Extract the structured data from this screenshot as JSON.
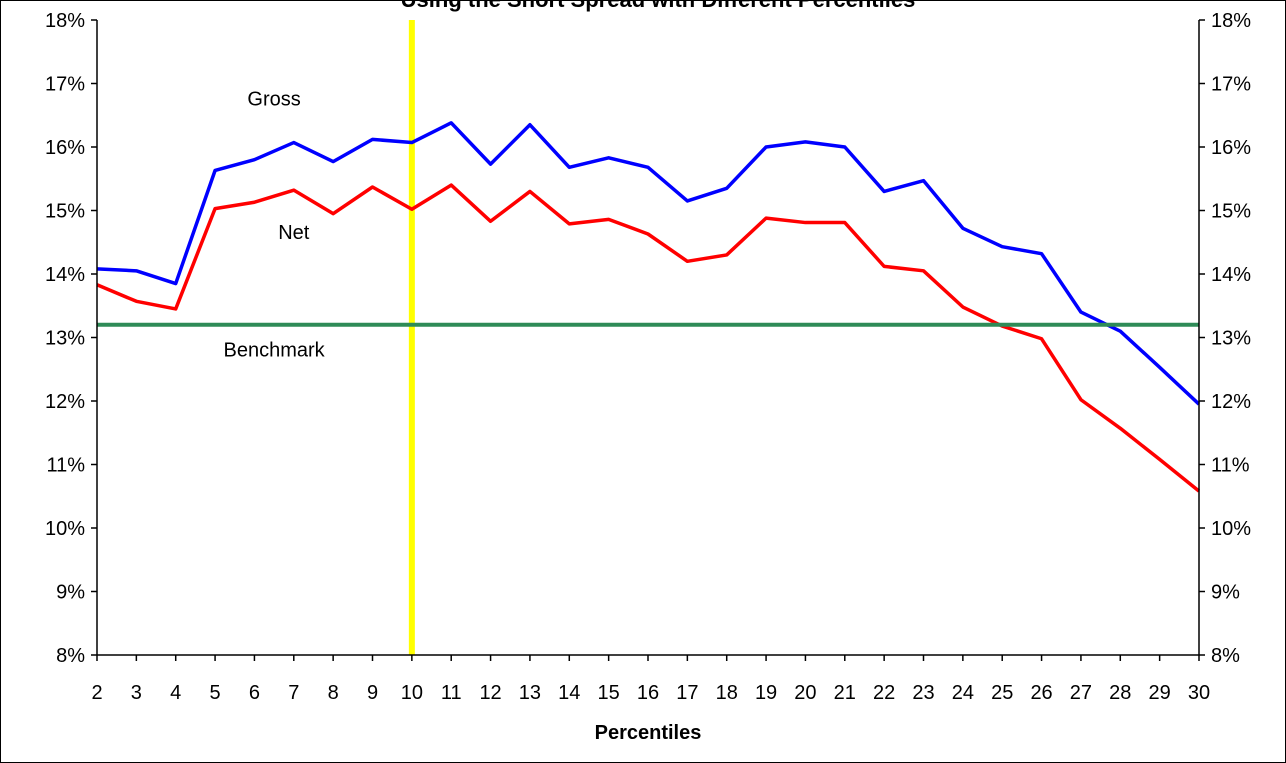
{
  "chart_data": {
    "type": "line",
    "title": "Using the Short Spread with Different Percentiles",
    "xlabel": "Percentiles",
    "ylabel": "",
    "x": [
      2,
      3,
      4,
      5,
      6,
      7,
      8,
      9,
      10,
      11,
      12,
      13,
      14,
      15,
      16,
      17,
      18,
      19,
      20,
      21,
      22,
      23,
      24,
      25,
      26,
      27,
      28,
      29,
      30
    ],
    "ylim": [
      8,
      18
    ],
    "y_ticks": [
      8,
      9,
      10,
      11,
      12,
      13,
      14,
      15,
      16,
      17,
      18
    ],
    "y_tick_suffix": "%",
    "grid": false,
    "legend": "none",
    "series": [
      {
        "name": "Gross",
        "color": "#0000ff",
        "values": [
          14.08,
          14.05,
          13.85,
          15.63,
          15.8,
          16.07,
          15.77,
          16.12,
          16.07,
          16.38,
          15.73,
          16.35,
          15.68,
          15.83,
          15.68,
          15.15,
          15.35,
          16.0,
          16.08,
          16.0,
          15.3,
          15.47,
          14.72,
          14.43,
          14.32,
          13.4,
          13.1,
          12.53,
          11.95
        ]
      },
      {
        "name": "Net",
        "color": "#ff0000",
        "values": [
          13.83,
          13.57,
          13.45,
          15.03,
          15.13,
          15.32,
          14.95,
          15.37,
          15.02,
          15.4,
          14.83,
          15.3,
          14.79,
          14.86,
          14.63,
          14.2,
          14.3,
          14.88,
          14.81,
          14.81,
          14.12,
          14.05,
          13.48,
          13.18,
          12.98,
          12.02,
          11.57,
          11.08,
          10.58
        ]
      },
      {
        "name": "Benchmark",
        "color": "#2e8b57",
        "values": [
          13.2,
          13.2,
          13.2,
          13.2,
          13.2,
          13.2,
          13.2,
          13.2,
          13.2,
          13.2,
          13.2,
          13.2,
          13.2,
          13.2,
          13.2,
          13.2,
          13.2,
          13.2,
          13.2,
          13.2,
          13.2,
          13.2,
          13.2,
          13.2,
          13.2,
          13.2,
          13.2,
          13.2,
          13.2
        ]
      }
    ],
    "vertical_marker": {
      "x": 10,
      "color": "#ffff00"
    },
    "annotations": [
      {
        "text": "Gross",
        "x": 6.5,
        "y": 16.65
      },
      {
        "text": "Net",
        "x": 7.0,
        "y": 14.55
      },
      {
        "text": "Benchmark",
        "x": 6.5,
        "y": 12.7
      }
    ]
  }
}
